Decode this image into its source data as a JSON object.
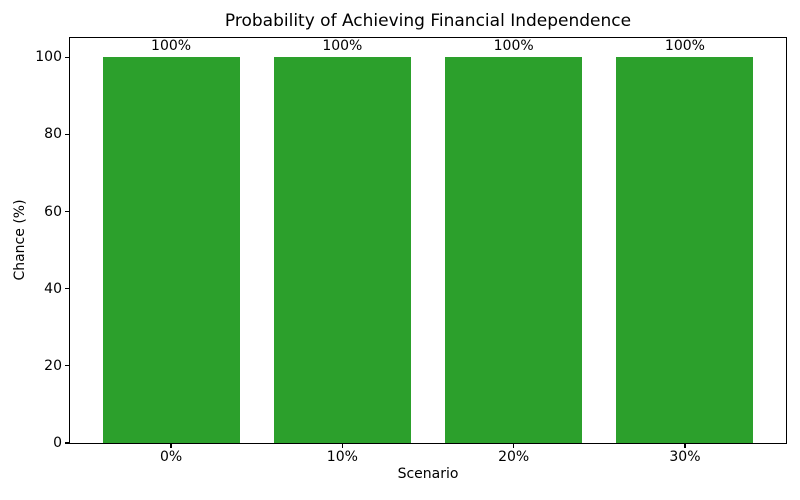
{
  "chart_data": {
    "type": "bar",
    "title": "Probability of Achieving Financial Independence",
    "xlabel": "Scenario",
    "ylabel": "Chance (%)",
    "categories": [
      "0%",
      "10%",
      "20%",
      "30%"
    ],
    "values": [
      100,
      100,
      100,
      100
    ],
    "bar_labels": [
      "100%",
      "100%",
      "100%",
      "100%"
    ],
    "bar_color": "#2ca02c",
    "ylim": [
      0,
      105
    ],
    "yticks": [
      0,
      20,
      40,
      60,
      80,
      100
    ],
    "xlim": [
      -0.59,
      3.59
    ],
    "bar_width_units": 0.8,
    "grid": false,
    "legend": "none",
    "frame": "full-box",
    "background_color": "#ffffff",
    "text_color": "#000000"
  }
}
